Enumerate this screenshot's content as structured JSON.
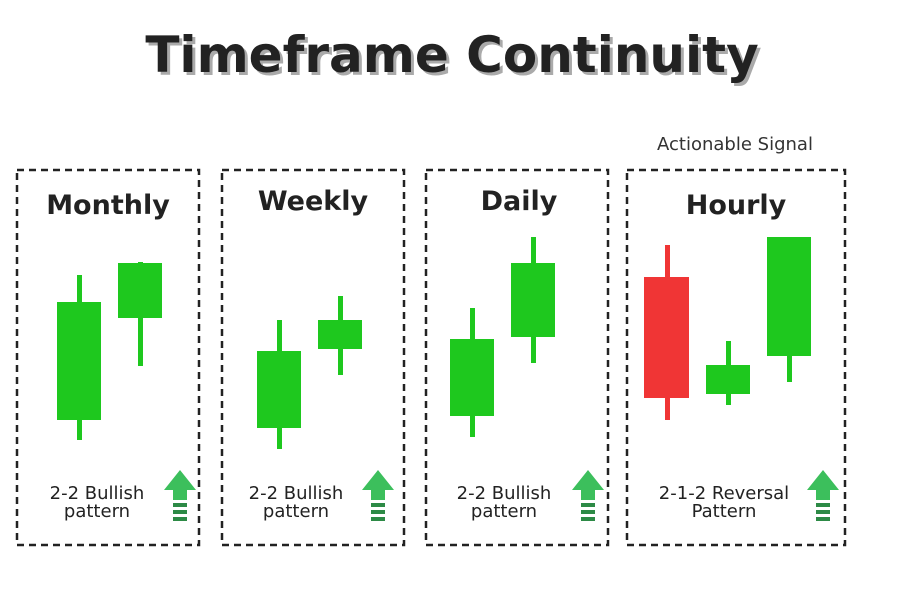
{
  "header": {
    "title": "Timeframe Continuity",
    "signal_label": "Actionable Signal"
  },
  "panels": [
    {
      "title": "Monthly",
      "label": [
        "2-2 Bullish",
        "pattern"
      ]
    },
    {
      "title": "Weekly",
      "label": [
        "2-2 Bullish",
        "pattern"
      ]
    },
    {
      "title": "Daily",
      "label": [
        "2-2 Bullish",
        "pattern"
      ]
    },
    {
      "title": "Hourly",
      "label": [
        "2-1-2 Reversal",
        "Pattern"
      ]
    }
  ]
}
